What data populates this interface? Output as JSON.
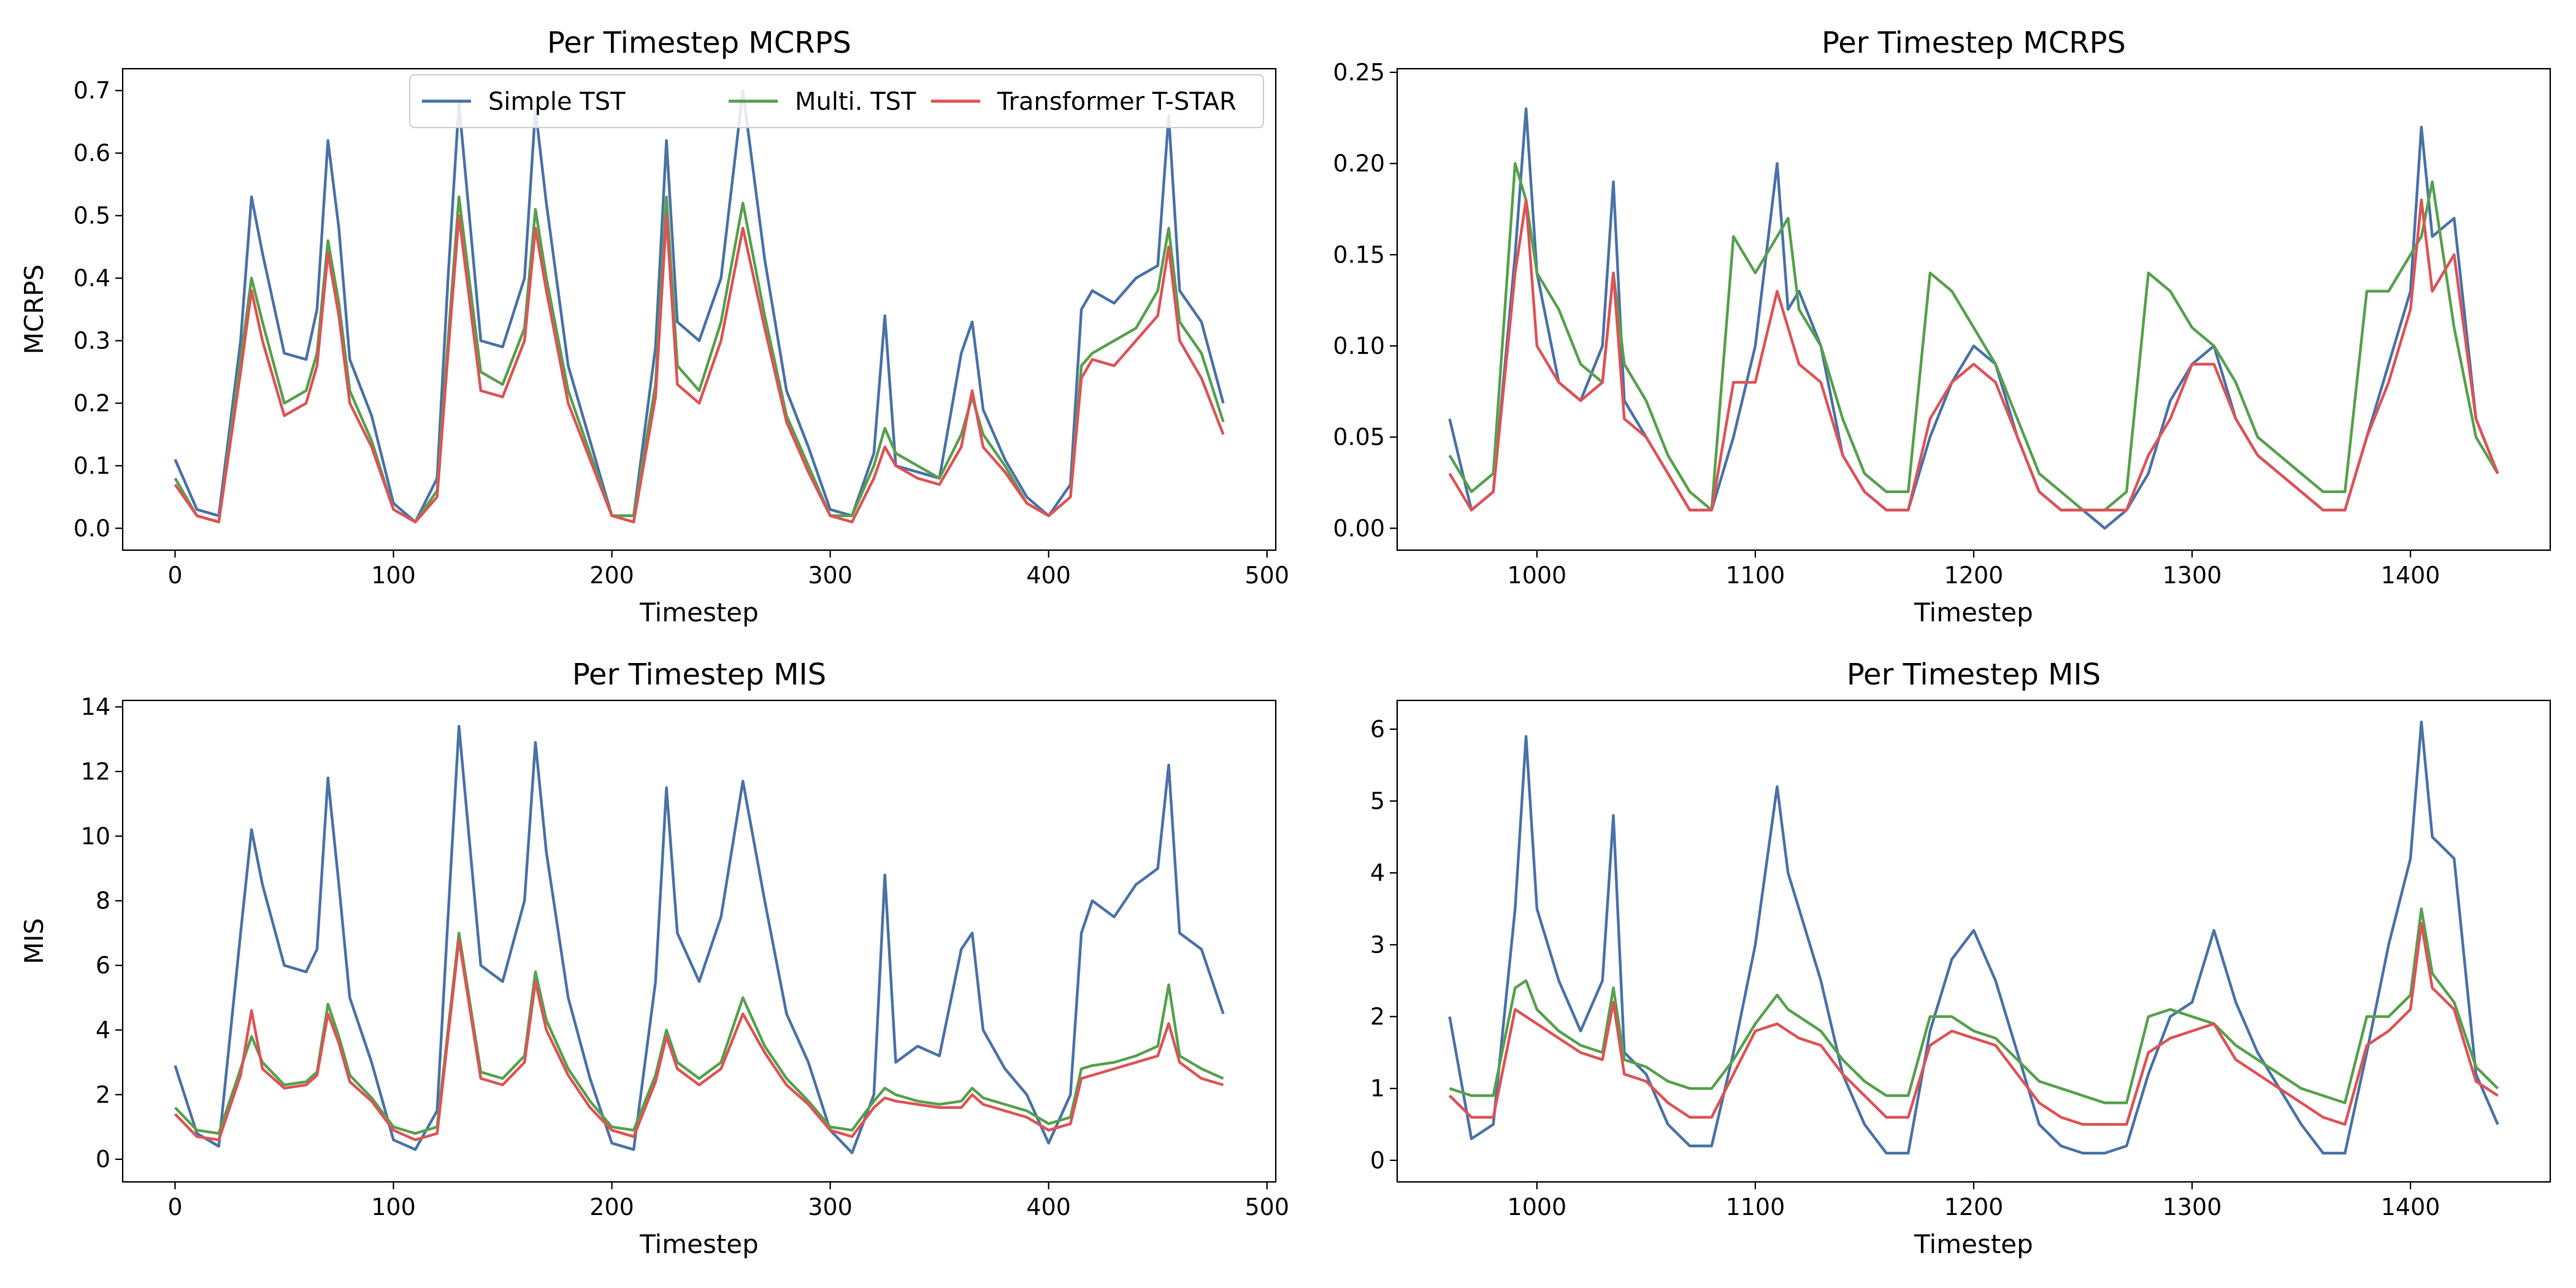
{
  "colors": {
    "simple": "#4a72a8",
    "multi": "#56a14c",
    "tstar": "#de5356"
  },
  "legend": {
    "placement": "top-right of first panel",
    "entries": [
      {
        "key": "simple",
        "label": "Simple TST"
      },
      {
        "key": "multi",
        "label": "Multi. TST"
      },
      {
        "key": "tstar",
        "label": "Transformer T-STAR"
      }
    ]
  },
  "chart_data": [
    {
      "type": "line",
      "title": "Per Timestep MCRPS",
      "xlabel": "Timestep",
      "ylabel": "MCRPS",
      "xlim": [
        -24,
        504
      ],
      "ylim": [
        -0.035,
        0.735
      ],
      "xticks": [
        0,
        100,
        200,
        300,
        400,
        500
      ],
      "xtick_labels": [
        "0",
        "100",
        "200",
        "300",
        "400",
        "500"
      ],
      "yticks": [
        0,
        0.1,
        0.2,
        0.3,
        0.4,
        0.5,
        0.6,
        0.7
      ],
      "ytick_labels": [
        "0.0",
        "0.1",
        "0.2",
        "0.3",
        "0.4",
        "0.5",
        "0.6",
        "0.7"
      ],
      "legend": true,
      "x": [
        0,
        10,
        20,
        30,
        35,
        40,
        50,
        60,
        65,
        70,
        75,
        80,
        90,
        100,
        110,
        120,
        125,
        130,
        140,
        150,
        160,
        165,
        170,
        180,
        190,
        200,
        210,
        220,
        225,
        230,
        240,
        250,
        260,
        270,
        280,
        290,
        300,
        310,
        320,
        325,
        330,
        340,
        350,
        360,
        365,
        370,
        380,
        390,
        400,
        410,
        415,
        420,
        430,
        440,
        450,
        455,
        460,
        470,
        480
      ],
      "series": [
        {
          "name": "Simple TST",
          "key": "simple",
          "values": [
            0.11,
            0.03,
            0.02,
            0.3,
            0.53,
            0.44,
            0.28,
            0.27,
            0.35,
            0.62,
            0.48,
            0.27,
            0.18,
            0.04,
            0.01,
            0.08,
            0.4,
            0.68,
            0.3,
            0.29,
            0.4,
            0.67,
            0.52,
            0.26,
            0.14,
            0.02,
            0.02,
            0.29,
            0.62,
            0.33,
            0.3,
            0.4,
            0.7,
            0.43,
            0.22,
            0.13,
            0.03,
            0.02,
            0.12,
            0.34,
            0.1,
            0.09,
            0.08,
            0.28,
            0.33,
            0.19,
            0.11,
            0.05,
            0.02,
            0.07,
            0.35,
            0.38,
            0.36,
            0.4,
            0.42,
            0.66,
            0.38,
            0.33,
            0.2
          ]
        },
        {
          "name": "Multi. TST",
          "key": "multi",
          "values": [
            0.08,
            0.02,
            0.01,
            0.27,
            0.4,
            0.33,
            0.2,
            0.22,
            0.28,
            0.46,
            0.36,
            0.22,
            0.14,
            0.03,
            0.01,
            0.06,
            0.3,
            0.53,
            0.25,
            0.23,
            0.32,
            0.51,
            0.4,
            0.22,
            0.12,
            0.02,
            0.02,
            0.23,
            0.53,
            0.26,
            0.22,
            0.33,
            0.52,
            0.34,
            0.18,
            0.1,
            0.02,
            0.02,
            0.1,
            0.16,
            0.12,
            0.1,
            0.08,
            0.15,
            0.21,
            0.15,
            0.1,
            0.04,
            0.02,
            0.05,
            0.26,
            0.28,
            0.3,
            0.32,
            0.38,
            0.48,
            0.33,
            0.28,
            0.17
          ]
        },
        {
          "name": "Transformer T-STAR",
          "key": "tstar",
          "values": [
            0.07,
            0.02,
            0.01,
            0.25,
            0.38,
            0.3,
            0.18,
            0.2,
            0.26,
            0.44,
            0.34,
            0.2,
            0.13,
            0.03,
            0.01,
            0.05,
            0.28,
            0.5,
            0.22,
            0.21,
            0.3,
            0.48,
            0.38,
            0.2,
            0.11,
            0.02,
            0.01,
            0.21,
            0.5,
            0.23,
            0.2,
            0.3,
            0.48,
            0.32,
            0.17,
            0.09,
            0.02,
            0.01,
            0.08,
            0.13,
            0.1,
            0.08,
            0.07,
            0.13,
            0.22,
            0.13,
            0.09,
            0.04,
            0.02,
            0.05,
            0.24,
            0.27,
            0.26,
            0.3,
            0.34,
            0.45,
            0.3,
            0.24,
            0.15
          ]
        }
      ]
    },
    {
      "type": "line",
      "title": "Per Timestep MCRPS",
      "xlabel": "Timestep",
      "ylabel": "",
      "xlim": [
        936,
        1464
      ],
      "ylim": [
        -0.012,
        0.252
      ],
      "xticks": [
        1000,
        1100,
        1200,
        1300,
        1400
      ],
      "xtick_labels": [
        "1000",
        "1100",
        "1200",
        "1300",
        "1400"
      ],
      "yticks": [
        0,
        0.05,
        0.1,
        0.15,
        0.2,
        0.25
      ],
      "ytick_labels": [
        "0.00",
        "0.05",
        "0.10",
        "0.15",
        "0.20",
        "0.25"
      ],
      "legend": false,
      "x": [
        960,
        970,
        980,
        990,
        995,
        1000,
        1010,
        1020,
        1030,
        1035,
        1040,
        1050,
        1060,
        1070,
        1080,
        1090,
        1100,
        1110,
        1115,
        1120,
        1130,
        1140,
        1150,
        1160,
        1170,
        1180,
        1190,
        1200,
        1210,
        1220,
        1230,
        1240,
        1250,
        1260,
        1270,
        1280,
        1290,
        1300,
        1310,
        1320,
        1330,
        1340,
        1350,
        1360,
        1370,
        1380,
        1390,
        1400,
        1405,
        1410,
        1420,
        1430,
        1440
      ],
      "series": [
        {
          "name": "Simple TST",
          "key": "simple",
          "values": [
            0.06,
            0.01,
            0.02,
            0.15,
            0.23,
            0.14,
            0.08,
            0.07,
            0.1,
            0.19,
            0.07,
            0.05,
            0.03,
            0.01,
            0.01,
            0.05,
            0.1,
            0.2,
            0.12,
            0.13,
            0.1,
            0.04,
            0.02,
            0.01,
            0.01,
            0.05,
            0.08,
            0.1,
            0.09,
            0.05,
            0.02,
            0.01,
            0.01,
            0.0,
            0.01,
            0.03,
            0.07,
            0.09,
            0.1,
            0.06,
            0.04,
            0.03,
            0.02,
            0.01,
            0.01,
            0.05,
            0.09,
            0.13,
            0.22,
            0.16,
            0.17,
            0.06,
            0.03
          ]
        },
        {
          "name": "Multi. TST",
          "key": "multi",
          "values": [
            0.04,
            0.02,
            0.03,
            0.2,
            0.18,
            0.14,
            0.12,
            0.09,
            0.08,
            0.14,
            0.09,
            0.07,
            0.04,
            0.02,
            0.01,
            0.16,
            0.14,
            0.16,
            0.17,
            0.12,
            0.1,
            0.06,
            0.03,
            0.02,
            0.02,
            0.14,
            0.13,
            0.11,
            0.09,
            0.06,
            0.03,
            0.02,
            0.01,
            0.01,
            0.02,
            0.14,
            0.13,
            0.11,
            0.1,
            0.08,
            0.05,
            0.04,
            0.03,
            0.02,
            0.02,
            0.13,
            0.13,
            0.15,
            0.16,
            0.19,
            0.11,
            0.05,
            0.03
          ]
        },
        {
          "name": "Transformer T-STAR",
          "key": "tstar",
          "values": [
            0.03,
            0.01,
            0.02,
            0.14,
            0.18,
            0.1,
            0.08,
            0.07,
            0.08,
            0.14,
            0.06,
            0.05,
            0.03,
            0.01,
            0.01,
            0.08,
            0.08,
            0.13,
            0.11,
            0.09,
            0.08,
            0.04,
            0.02,
            0.01,
            0.01,
            0.06,
            0.08,
            0.09,
            0.08,
            0.05,
            0.02,
            0.01,
            0.01,
            0.01,
            0.01,
            0.04,
            0.06,
            0.09,
            0.09,
            0.06,
            0.04,
            0.03,
            0.02,
            0.01,
            0.01,
            0.05,
            0.08,
            0.12,
            0.18,
            0.13,
            0.15,
            0.06,
            0.03
          ]
        }
      ]
    },
    {
      "type": "line",
      "title": "Per Timestep MIS",
      "xlabel": "Timestep",
      "ylabel": "MIS",
      "xlim": [
        -24,
        504
      ],
      "ylim": [
        -0.7,
        14.2
      ],
      "xticks": [
        0,
        100,
        200,
        300,
        400,
        500
      ],
      "xtick_labels": [
        "0",
        "100",
        "200",
        "300",
        "400",
        "500"
      ],
      "yticks": [
        0,
        2,
        4,
        6,
        8,
        10,
        12,
        14
      ],
      "ytick_labels": [
        "0",
        "2",
        "4",
        "6",
        "8",
        "10",
        "12",
        "14"
      ],
      "legend": false,
      "x": [
        0,
        10,
        20,
        30,
        35,
        40,
        50,
        60,
        65,
        70,
        75,
        80,
        90,
        100,
        110,
        120,
        125,
        130,
        140,
        150,
        160,
        165,
        170,
        180,
        190,
        200,
        210,
        220,
        225,
        230,
        240,
        250,
        260,
        270,
        280,
        290,
        300,
        310,
        320,
        325,
        330,
        340,
        350,
        360,
        365,
        370,
        380,
        390,
        400,
        410,
        415,
        420,
        430,
        440,
        450,
        455,
        460,
        470,
        480
      ],
      "series": [
        {
          "name": "Simple TST",
          "key": "simple",
          "values": [
            2.9,
            0.8,
            0.4,
            7.0,
            10.2,
            8.5,
            6.0,
            5.8,
            6.5,
            11.8,
            8.5,
            5.0,
            3.0,
            0.6,
            0.3,
            1.5,
            7.5,
            13.4,
            6.0,
            5.5,
            8.0,
            12.9,
            9.5,
            5.0,
            2.5,
            0.5,
            0.3,
            5.5,
            11.5,
            7.0,
            5.5,
            7.5,
            11.7,
            8.0,
            4.5,
            3.0,
            0.9,
            0.2,
            2.0,
            8.8,
            3.0,
            3.5,
            3.2,
            6.5,
            7.0,
            4.0,
            2.8,
            2.0,
            0.5,
            2.0,
            7.0,
            8.0,
            7.5,
            8.5,
            9.0,
            12.2,
            7.0,
            6.5,
            4.5
          ]
        },
        {
          "name": "Multi. TST",
          "key": "multi",
          "values": [
            1.6,
            0.9,
            0.8,
            2.8,
            3.8,
            3.0,
            2.3,
            2.4,
            2.7,
            4.8,
            3.8,
            2.6,
            1.9,
            1.0,
            0.8,
            1.0,
            4.0,
            7.0,
            2.7,
            2.5,
            3.2,
            5.8,
            4.3,
            2.8,
            1.8,
            1.0,
            0.9,
            2.6,
            4.0,
            3.0,
            2.5,
            3.0,
            5.0,
            3.5,
            2.5,
            1.8,
            1.0,
            0.9,
            1.8,
            2.2,
            2.0,
            1.8,
            1.7,
            1.8,
            2.2,
            1.9,
            1.7,
            1.5,
            1.1,
            1.3,
            2.8,
            2.9,
            3.0,
            3.2,
            3.5,
            5.4,
            3.2,
            2.8,
            2.5
          ]
        },
        {
          "name": "Transformer T-STAR",
          "key": "tstar",
          "values": [
            1.4,
            0.7,
            0.6,
            2.6,
            4.6,
            2.8,
            2.2,
            2.3,
            2.6,
            4.5,
            3.6,
            2.4,
            1.8,
            0.9,
            0.6,
            0.8,
            3.8,
            6.8,
            2.5,
            2.3,
            3.0,
            5.5,
            4.0,
            2.6,
            1.6,
            0.9,
            0.7,
            2.4,
            3.8,
            2.8,
            2.3,
            2.8,
            4.5,
            3.3,
            2.3,
            1.7,
            0.9,
            0.7,
            1.6,
            1.9,
            1.8,
            1.7,
            1.6,
            1.6,
            2.0,
            1.7,
            1.5,
            1.3,
            0.9,
            1.1,
            2.5,
            2.6,
            2.8,
            3.0,
            3.2,
            4.2,
            3.0,
            2.5,
            2.3
          ]
        }
      ]
    },
    {
      "type": "line",
      "title": "Per Timestep MIS",
      "xlabel": "Timestep",
      "ylabel": "",
      "xlim": [
        936,
        1464
      ],
      "ylim": [
        -0.3,
        6.4
      ],
      "xticks": [
        1000,
        1100,
        1200,
        1300,
        1400
      ],
      "xtick_labels": [
        "1000",
        "1100",
        "1200",
        "1300",
        "1400"
      ],
      "yticks": [
        0,
        1,
        2,
        3,
        4,
        5,
        6
      ],
      "ytick_labels": [
        "0",
        "1",
        "2",
        "3",
        "4",
        "5",
        "6"
      ],
      "legend": false,
      "x": [
        960,
        970,
        980,
        990,
        995,
        1000,
        1010,
        1020,
        1030,
        1035,
        1040,
        1050,
        1060,
        1070,
        1080,
        1090,
        1100,
        1110,
        1115,
        1120,
        1130,
        1140,
        1150,
        1160,
        1170,
        1180,
        1190,
        1200,
        1210,
        1220,
        1230,
        1240,
        1250,
        1260,
        1270,
        1280,
        1290,
        1300,
        1310,
        1320,
        1330,
        1340,
        1350,
        1360,
        1370,
        1380,
        1390,
        1400,
        1405,
        1410,
        1420,
        1430,
        1440
      ],
      "series": [
        {
          "name": "Simple TST",
          "key": "simple",
          "values": [
            2.0,
            0.3,
            0.5,
            3.5,
            5.9,
            3.5,
            2.5,
            1.8,
            2.5,
            4.8,
            1.5,
            1.2,
            0.5,
            0.2,
            0.2,
            1.5,
            3.0,
            5.2,
            4.0,
            3.5,
            2.5,
            1.2,
            0.5,
            0.1,
            0.1,
            1.8,
            2.8,
            3.2,
            2.5,
            1.5,
            0.5,
            0.2,
            0.1,
            0.1,
            0.2,
            1.2,
            2.0,
            2.2,
            3.2,
            2.2,
            1.5,
            1.0,
            0.5,
            0.1,
            0.1,
            1.5,
            3.0,
            4.2,
            6.1,
            4.5,
            4.2,
            1.2,
            0.5
          ]
        },
        {
          "name": "Multi. TST",
          "key": "multi",
          "values": [
            1.0,
            0.9,
            0.9,
            2.4,
            2.5,
            2.1,
            1.8,
            1.6,
            1.5,
            2.4,
            1.4,
            1.3,
            1.1,
            1.0,
            1.0,
            1.4,
            1.9,
            2.3,
            2.1,
            2.0,
            1.8,
            1.4,
            1.1,
            0.9,
            0.9,
            2.0,
            2.0,
            1.8,
            1.7,
            1.4,
            1.1,
            1.0,
            0.9,
            0.8,
            0.8,
            2.0,
            2.1,
            2.0,
            1.9,
            1.6,
            1.4,
            1.2,
            1.0,
            0.9,
            0.8,
            2.0,
            2.0,
            2.3,
            3.5,
            2.6,
            2.2,
            1.3,
            1.0
          ]
        },
        {
          "name": "Transformer T-STAR",
          "key": "tstar",
          "values": [
            0.9,
            0.6,
            0.6,
            2.1,
            2.0,
            1.9,
            1.7,
            1.5,
            1.4,
            2.2,
            1.2,
            1.1,
            0.8,
            0.6,
            0.6,
            1.2,
            1.8,
            1.9,
            1.8,
            1.7,
            1.6,
            1.2,
            0.9,
            0.6,
            0.6,
            1.6,
            1.8,
            1.7,
            1.6,
            1.2,
            0.8,
            0.6,
            0.5,
            0.5,
            0.5,
            1.5,
            1.7,
            1.8,
            1.9,
            1.4,
            1.2,
            1.0,
            0.8,
            0.6,
            0.5,
            1.6,
            1.8,
            2.1,
            3.3,
            2.4,
            2.1,
            1.1,
            0.9
          ]
        }
      ]
    }
  ]
}
